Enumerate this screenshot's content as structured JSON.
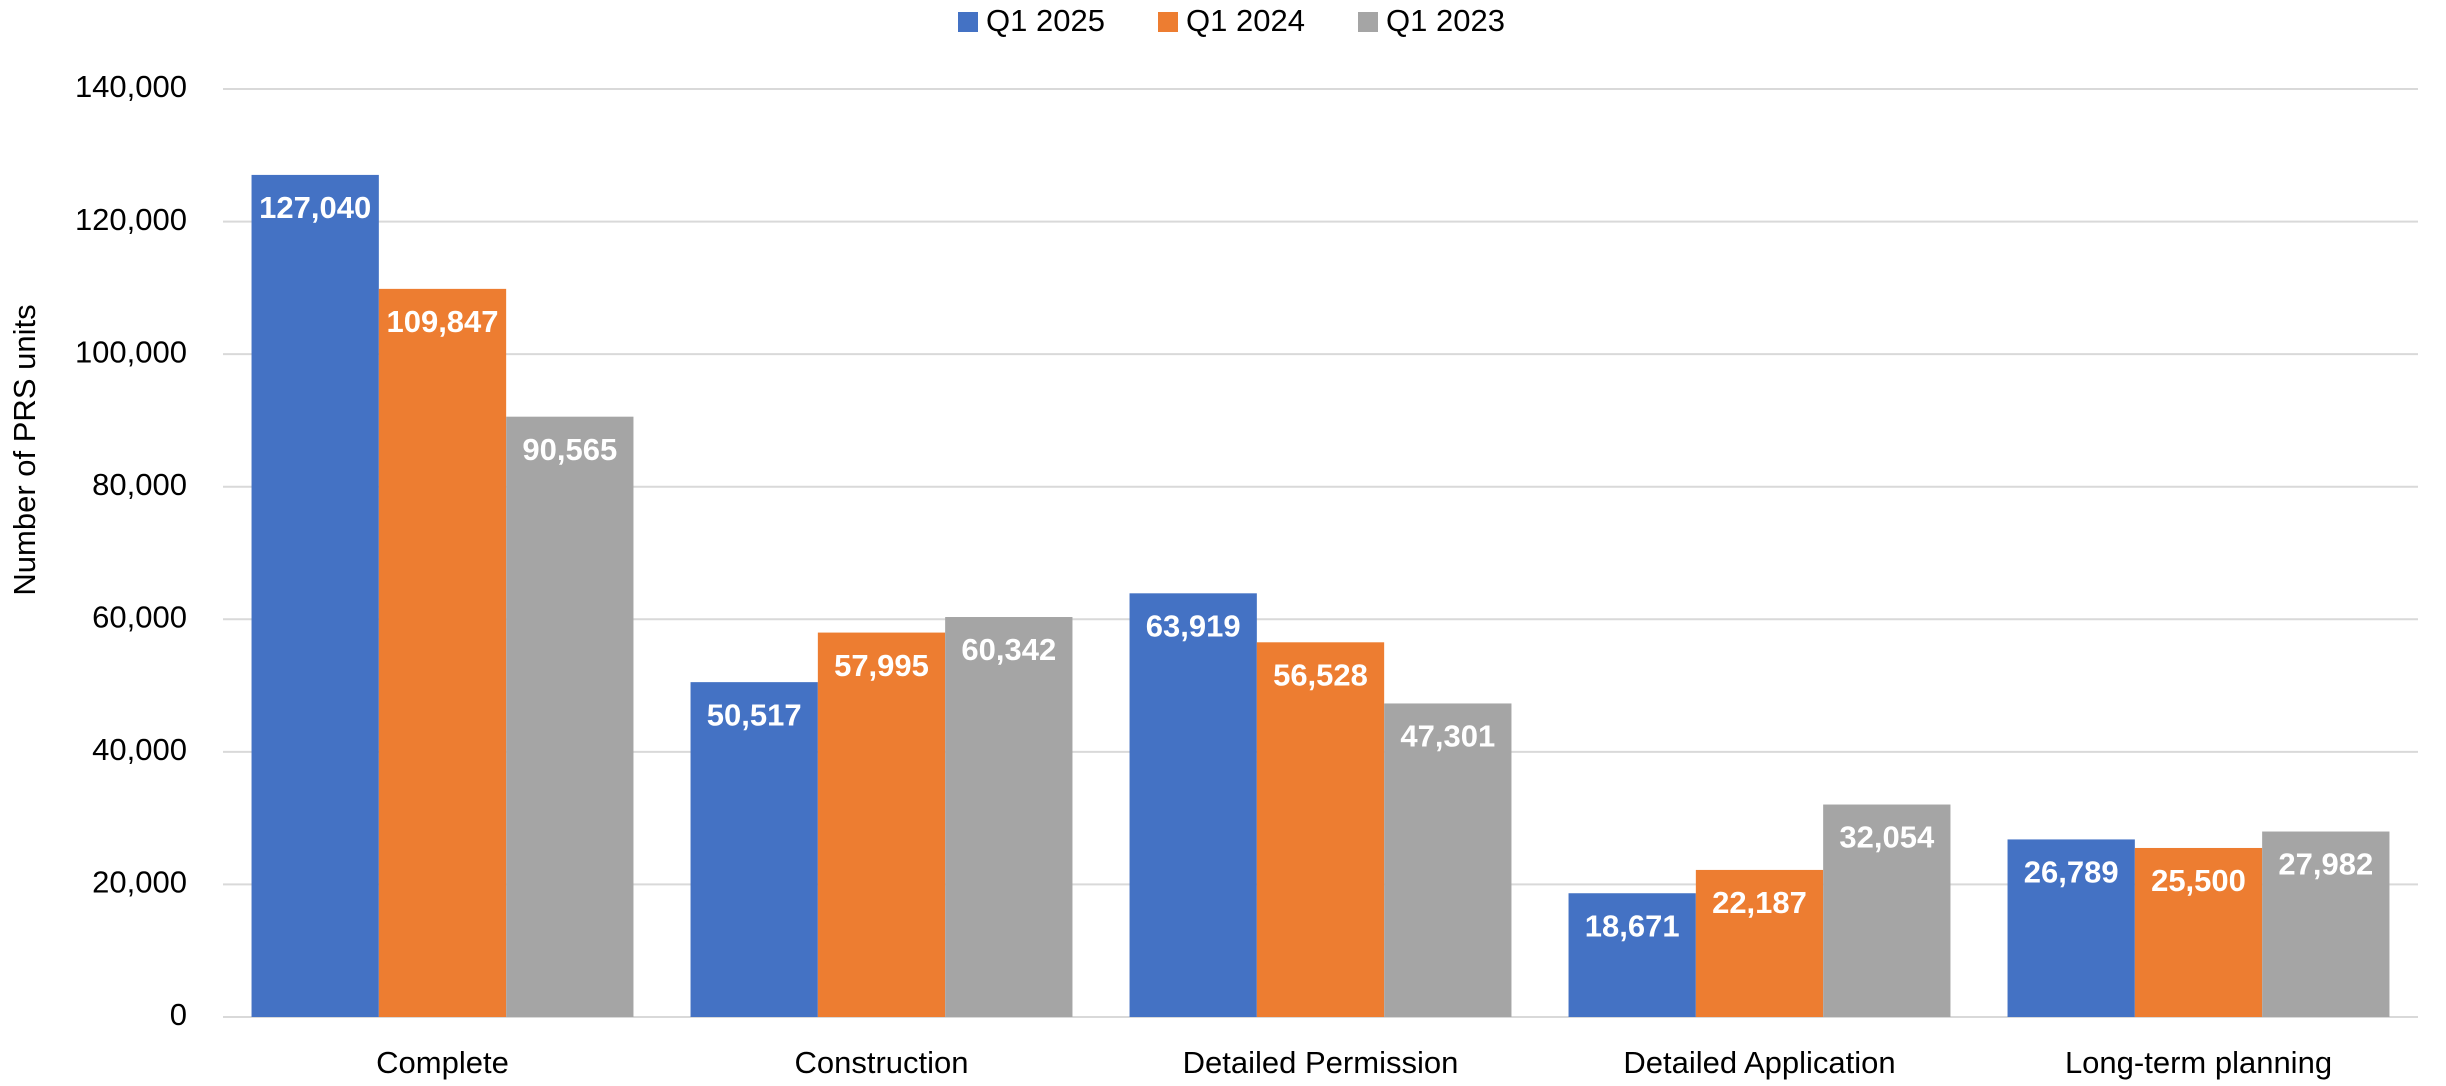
{
  "chart_data": {
    "type": "bar",
    "y_label": "Number of PRS units",
    "categories": [
      "Complete",
      "Construction",
      "Detailed Permission",
      "Detailed Application",
      "Long-term planning"
    ],
    "series": [
      {
        "name": "Q1 2025",
        "color": "#4472c4",
        "values": [
          127040,
          50517,
          63919,
          18671,
          26789
        ],
        "value_labels": [
          "127,040",
          "50,517",
          "63,919",
          "18,671",
          "26,789"
        ]
      },
      {
        "name": "Q1 2024",
        "color": "#ed7d31",
        "values": [
          109847,
          57995,
          56528,
          22187,
          25500
        ],
        "value_labels": [
          "109,847",
          "57,995",
          "56,528",
          "22,187",
          "25,500"
        ]
      },
      {
        "name": "Q1 2023",
        "color": "#a5a5a5",
        "values": [
          90565,
          60342,
          47301,
          32054,
          27982
        ],
        "value_labels": [
          "90,565",
          "60,342",
          "47,301",
          "32,054",
          "27,982"
        ]
      }
    ],
    "ylim": [
      0,
      140000
    ],
    "yticks": [
      0,
      {
        "value": 20000,
        "label": "20,000"
      },
      {
        "value": 40000,
        "label": "40,000"
      },
      {
        "value": 60000,
        "label": "60,000"
      },
      {
        "value": 80000,
        "label": "80,000"
      },
      {
        "value": 100000,
        "label": "100,000"
      },
      {
        "value": 120000,
        "label": "120,000"
      },
      {
        "value": 140000,
        "label": "140,000"
      }
    ],
    "grid": true,
    "legend": "top"
  }
}
